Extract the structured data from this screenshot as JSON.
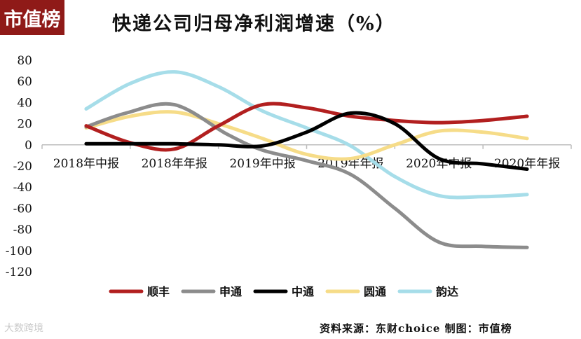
{
  "brand_logo": "市值榜",
  "source_label": "资料来源：东财choice  制图：市值榜",
  "watermark": "大数跨境",
  "chart_data": {
    "type": "line",
    "title": "快递公司归母净利润增速（%）",
    "categories": [
      "2018年中报",
      "2018年年报",
      "2019年中报",
      "2019年年报",
      "2020年中报",
      "2020年年报"
    ],
    "ylim": [
      -120,
      80
    ],
    "yticks": [
      80,
      60,
      40,
      20,
      0,
      -20,
      -40,
      -60,
      -80,
      -100,
      -120
    ],
    "grid": false,
    "legend_position": "bottom",
    "series": [
      {
        "name": "顺丰",
        "color": "#b21f1f",
        "x": [
          0,
          0.5,
          1.0,
          1.5,
          2.0,
          2.5,
          3.0,
          3.5,
          4.0,
          4.5,
          5.0
        ],
        "values": [
          18,
          2,
          -4,
          18,
          38,
          35,
          27,
          23,
          21,
          23,
          27
        ]
      },
      {
        "name": "申通",
        "color": "#8c8c8c",
        "x": [
          0,
          0.45,
          1.0,
          1.6,
          2.0,
          2.5,
          3.0,
          3.5,
          4.0,
          4.5,
          5.0
        ],
        "values": [
          17,
          30,
          38,
          10,
          -5,
          -15,
          -28,
          -60,
          -92,
          -96,
          -97
        ]
      },
      {
        "name": "中通",
        "color": "#000000",
        "x": [
          0,
          0.5,
          1.0,
          1.5,
          2.0,
          2.5,
          3.0,
          3.5,
          4.0,
          4.5,
          5.0
        ],
        "values": [
          1,
          1,
          1,
          0,
          -1,
          12,
          30,
          20,
          -13,
          -18,
          -23
        ]
      },
      {
        "name": "圆通",
        "color": "#f6dc88",
        "x": [
          0,
          0.5,
          1.0,
          1.5,
          2.0,
          2.5,
          3.0,
          3.5,
          4.0,
          4.5,
          5.0
        ],
        "values": [
          16,
          27,
          31,
          20,
          6,
          -9,
          -13,
          0,
          13,
          12,
          6
        ]
      },
      {
        "name": "韵达",
        "color": "#a6dde9",
        "x": [
          0,
          0.5,
          1.0,
          1.5,
          2.0,
          2.5,
          3.0,
          3.5,
          4.0,
          4.5,
          5.0
        ],
        "values": [
          34,
          58,
          69,
          55,
          32,
          16,
          -1,
          -30,
          -48,
          -49,
          -47
        ]
      }
    ]
  }
}
